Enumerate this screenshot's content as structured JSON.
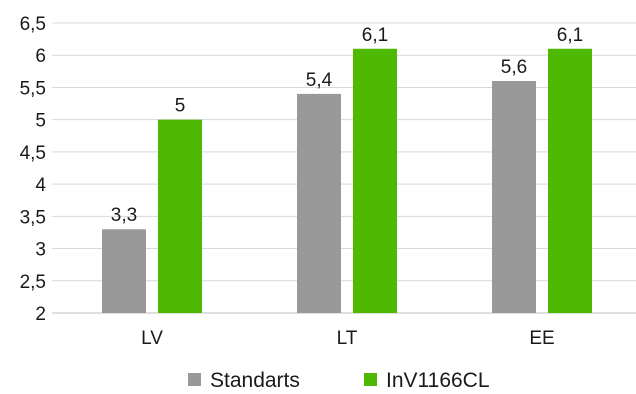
{
  "chart_data": {
    "type": "bar",
    "categories": [
      "LV",
      "LT",
      "EE"
    ],
    "series": [
      {
        "name": "Standarts",
        "values": [
          3.3,
          5.4,
          5.6
        ],
        "color": "#999999",
        "labels": [
          "3,3",
          "5,4",
          "5,6"
        ]
      },
      {
        "name": "InV1166CL",
        "values": [
          5.0,
          6.1,
          6.1
        ],
        "color": "#4fb800",
        "labels": [
          "5",
          "6,1",
          "6,1"
        ]
      }
    ],
    "ylim": [
      2,
      6.5
    ],
    "yticks": [
      2,
      2.5,
      3,
      3.5,
      4,
      4.5,
      5,
      5.5,
      6,
      6.5
    ],
    "ytick_labels": [
      "2",
      "2,5",
      "3",
      "3,5",
      "4",
      "4,5",
      "5",
      "5,5",
      "6",
      "6,5"
    ],
    "grid": true,
    "legend_position": "bottom",
    "title": "",
    "xlabel": "",
    "ylabel": ""
  }
}
